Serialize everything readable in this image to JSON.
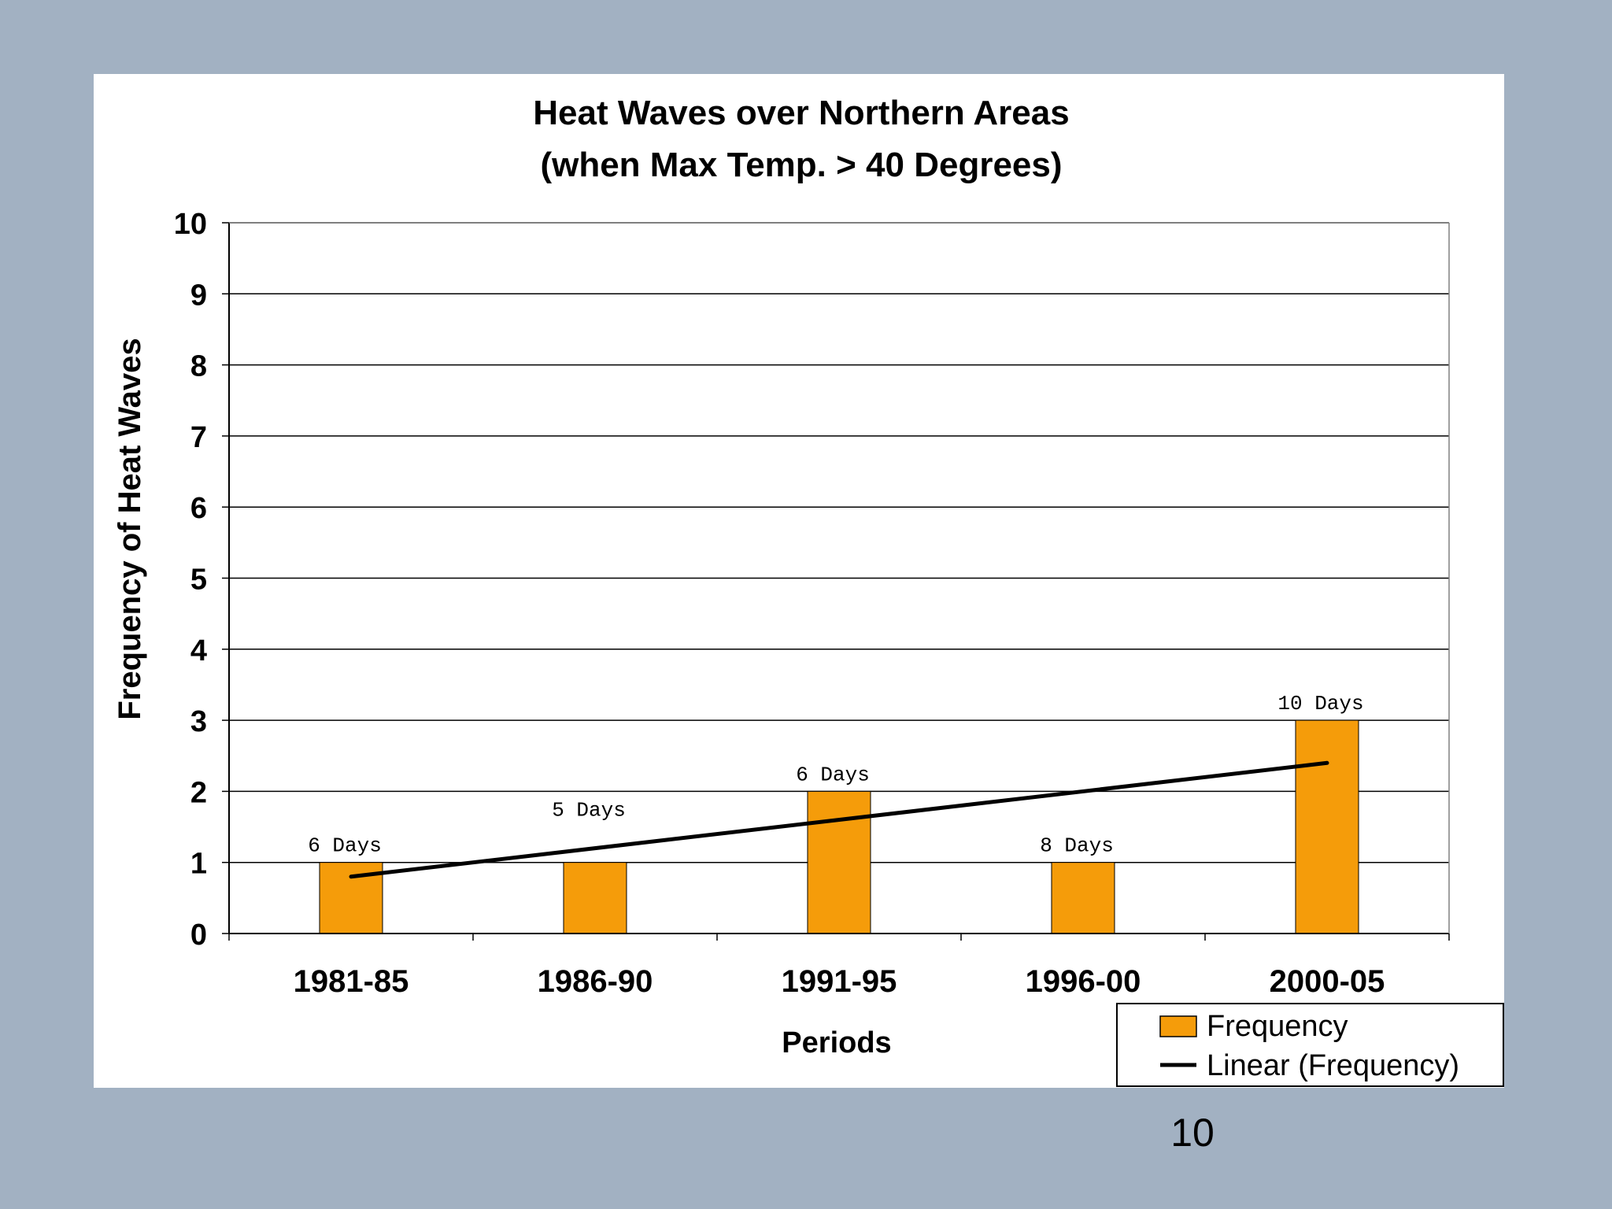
{
  "page": {
    "number": "10",
    "background_color": "#a2b1c2"
  },
  "chart_data": {
    "type": "bar",
    "title": "Heat Waves over Northern Areas",
    "subtitle": "(when Max Temp. > 40 Degrees)",
    "xlabel": "Periods",
    "ylabel": "Frequency of Heat Waves",
    "categories": [
      "1981-85",
      "1986-90",
      "1991-95",
      "1996-00",
      "2000-05"
    ],
    "values": [
      1,
      1,
      2,
      1,
      3
    ],
    "bar_labels": [
      "6 Days",
      "5 Days",
      "6 Days",
      "8 Days",
      "10 Days"
    ],
    "ylim": [
      0,
      10
    ],
    "yticks": [
      "0",
      "1",
      "2",
      "3",
      "4",
      "5",
      "6",
      "7",
      "8",
      "9",
      "10"
    ],
    "grid": true,
    "bar_color": "#f59c0a",
    "trendline": {
      "name": "Linear (Frequency)",
      "start": 0.8,
      "end": 2.4,
      "color": "#000000"
    },
    "legend": {
      "position": "bottom-right",
      "entries": [
        "Frequency",
        "Linear (Frequency)"
      ]
    }
  }
}
